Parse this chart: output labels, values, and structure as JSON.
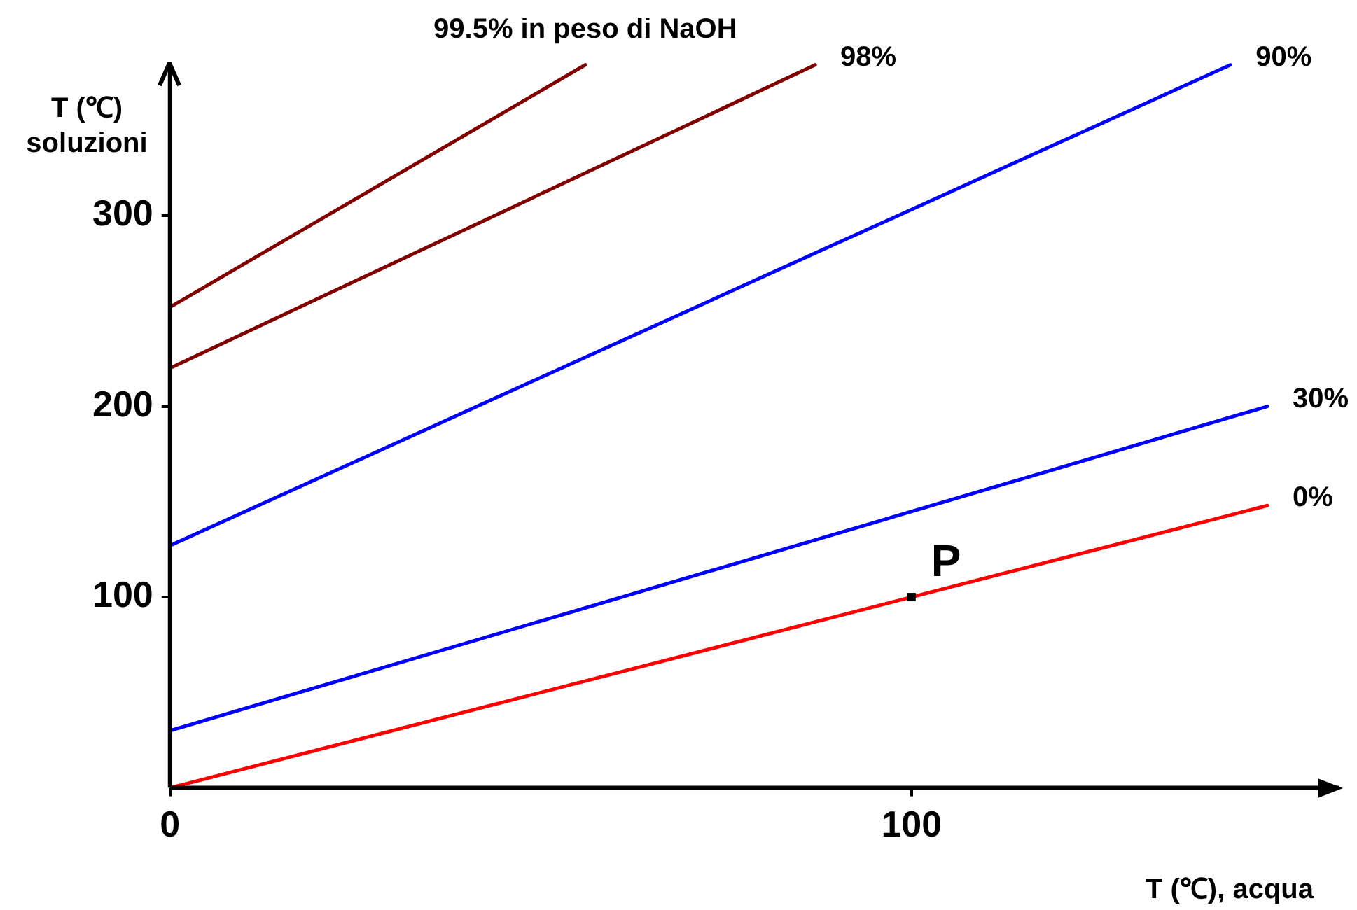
{
  "chart_data": {
    "type": "line",
    "xlabel": "T (℃), acqua",
    "ylabel": "T (℃)\nsoluzioni",
    "xlim": [
      0,
      158
    ],
    "ylim": [
      0,
      380
    ],
    "xticks": [
      0,
      100
    ],
    "yticks": [
      100,
      200,
      300
    ],
    "grid": false,
    "legend": false,
    "marker": "none",
    "line_style": "solid",
    "series": [
      {
        "name": "99.5% in peso di NaOH",
        "color": "#800000",
        "x": [
          0,
          56
        ],
        "values": [
          252,
          379
        ]
      },
      {
        "name": "98%",
        "color": "#800000",
        "x": [
          0,
          87
        ],
        "values": [
          220,
          379
        ]
      },
      {
        "name": "90%",
        "color": "#0000ff",
        "x": [
          0,
          143
        ],
        "values": [
          127,
          379
        ]
      },
      {
        "name": "30%",
        "color": "#0000ff",
        "x": [
          0,
          148
        ],
        "values": [
          30,
          200
        ]
      },
      {
        "name": "0%",
        "color": "#ff0000",
        "x": [
          0,
          148
        ],
        "values": [
          0,
          148
        ]
      }
    ],
    "annotations": [
      {
        "text": "P",
        "x": 100,
        "y": 100
      }
    ]
  }
}
